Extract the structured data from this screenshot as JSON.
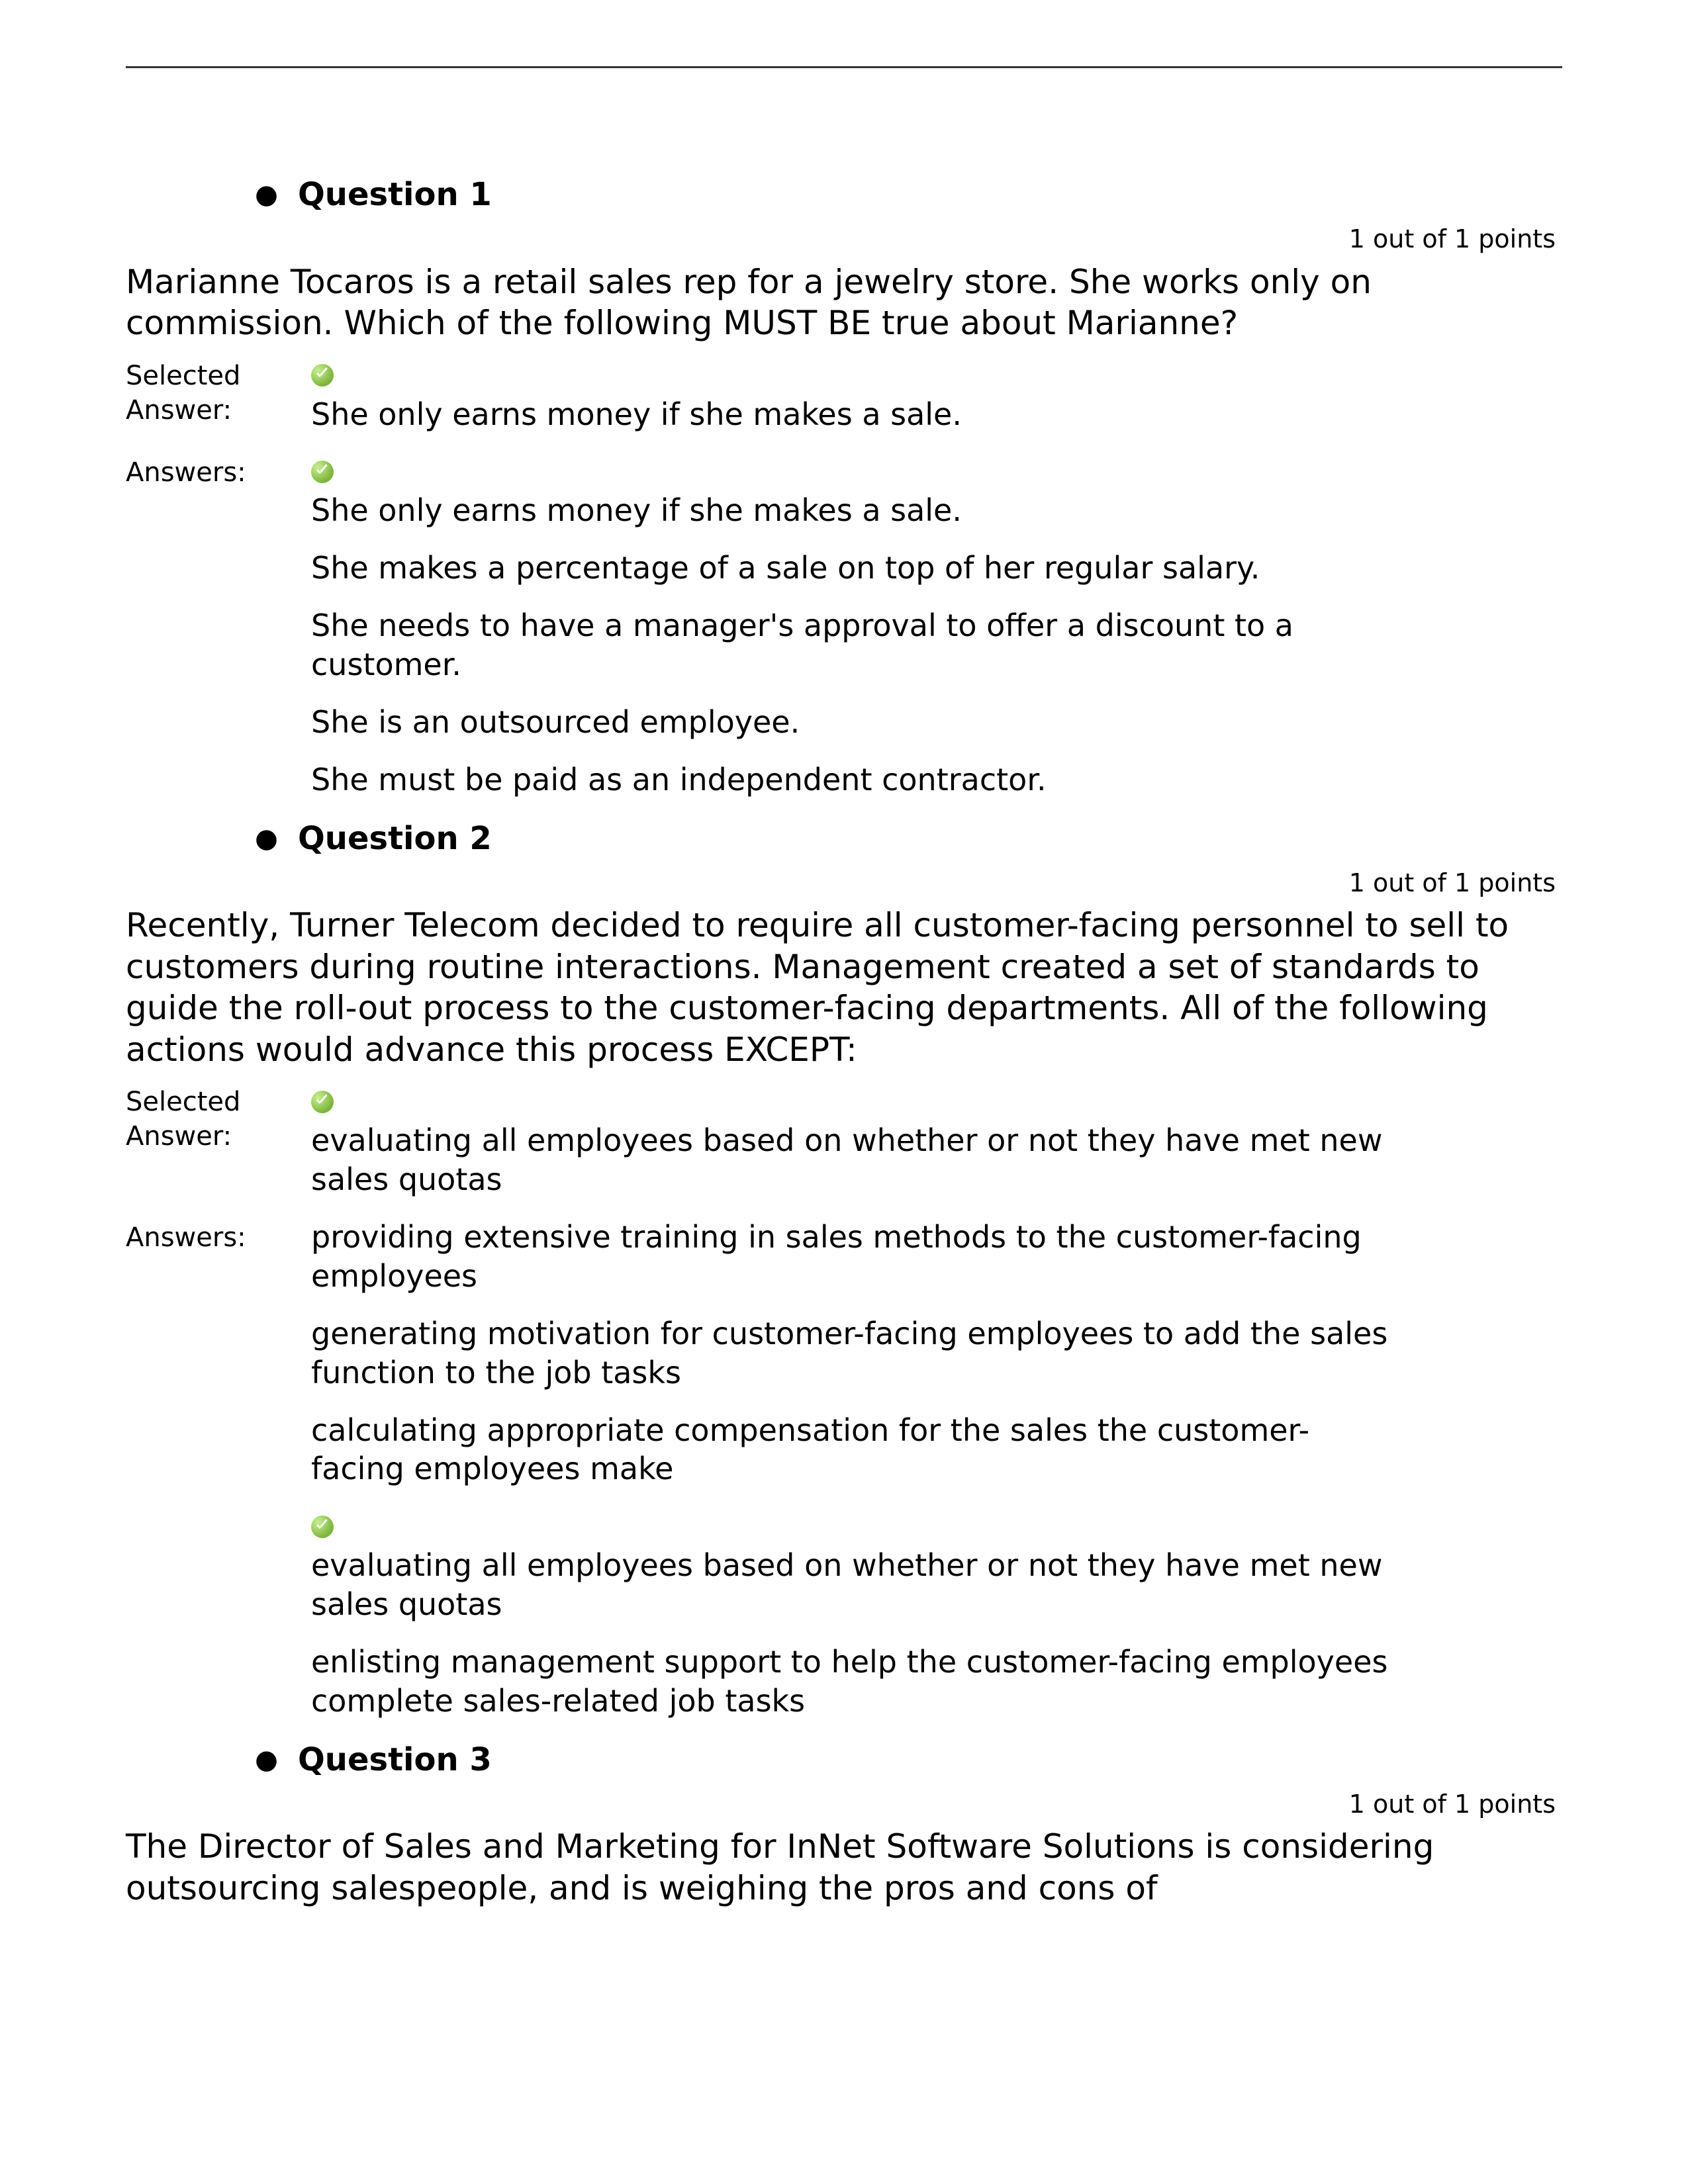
{
  "questions": [
    {
      "title": "Question 1",
      "points": "1 out of 1 points",
      "prompt": "Marianne Tocaros is a retail sales rep for a jewelry store. She works only on commission. Which of the following MUST BE true about Marianne?",
      "selected_label": "Selected Answer:",
      "answers_label": "Answers:",
      "selected": {
        "correct": true,
        "text": "She only earns money if she makes a sale."
      },
      "answers": [
        {
          "correct": true,
          "text": "She only earns money if she makes a sale."
        },
        {
          "correct": false,
          "text": "She makes a percentage of a sale on top of her regular salary."
        },
        {
          "correct": false,
          "text": "She needs to have a manager's approval to offer a discount to a customer."
        },
        {
          "correct": false,
          "text": "She is an outsourced employee."
        },
        {
          "correct": false,
          "text": "She must be paid as an independent contractor."
        }
      ]
    },
    {
      "title": "Question 2",
      "points": "1 out of 1 points",
      "prompt": "Recently, Turner Telecom decided to require all customer-facing personnel to sell to customers during routine interactions. Management created a set of standards to guide the roll-out process to the customer-facing departments. All of the following actions would advance this process EXCEPT:",
      "selected_label": "Selected Answer:",
      "answers_label": "Answers:",
      "selected": {
        "correct": true,
        "text": "evaluating all employees based on whether or not they have met new sales quotas"
      },
      "answers": [
        {
          "correct": false,
          "text": "providing extensive training in sales methods to the customer-facing employees"
        },
        {
          "correct": false,
          "text": "generating motivation for customer-facing employees to add the sales function to the job tasks"
        },
        {
          "correct": false,
          "text": "calculating appropriate compensation for the sales the customer-facing employees make"
        },
        {
          "correct": true,
          "text": "evaluating all employees based on whether or not they have met new sales quotas"
        },
        {
          "correct": false,
          "text": "enlisting management support to help the customer-facing employees complete sales-related job tasks"
        }
      ]
    },
    {
      "title": "Question 3",
      "points": "1 out of 1 points",
      "prompt": "The Director of Sales and Marketing for InNet Software Solutions is considering outsourcing salespeople, and is weighing the pros and cons of",
      "selected_label": "",
      "answers_label": "",
      "selected": null,
      "answers": []
    }
  ]
}
